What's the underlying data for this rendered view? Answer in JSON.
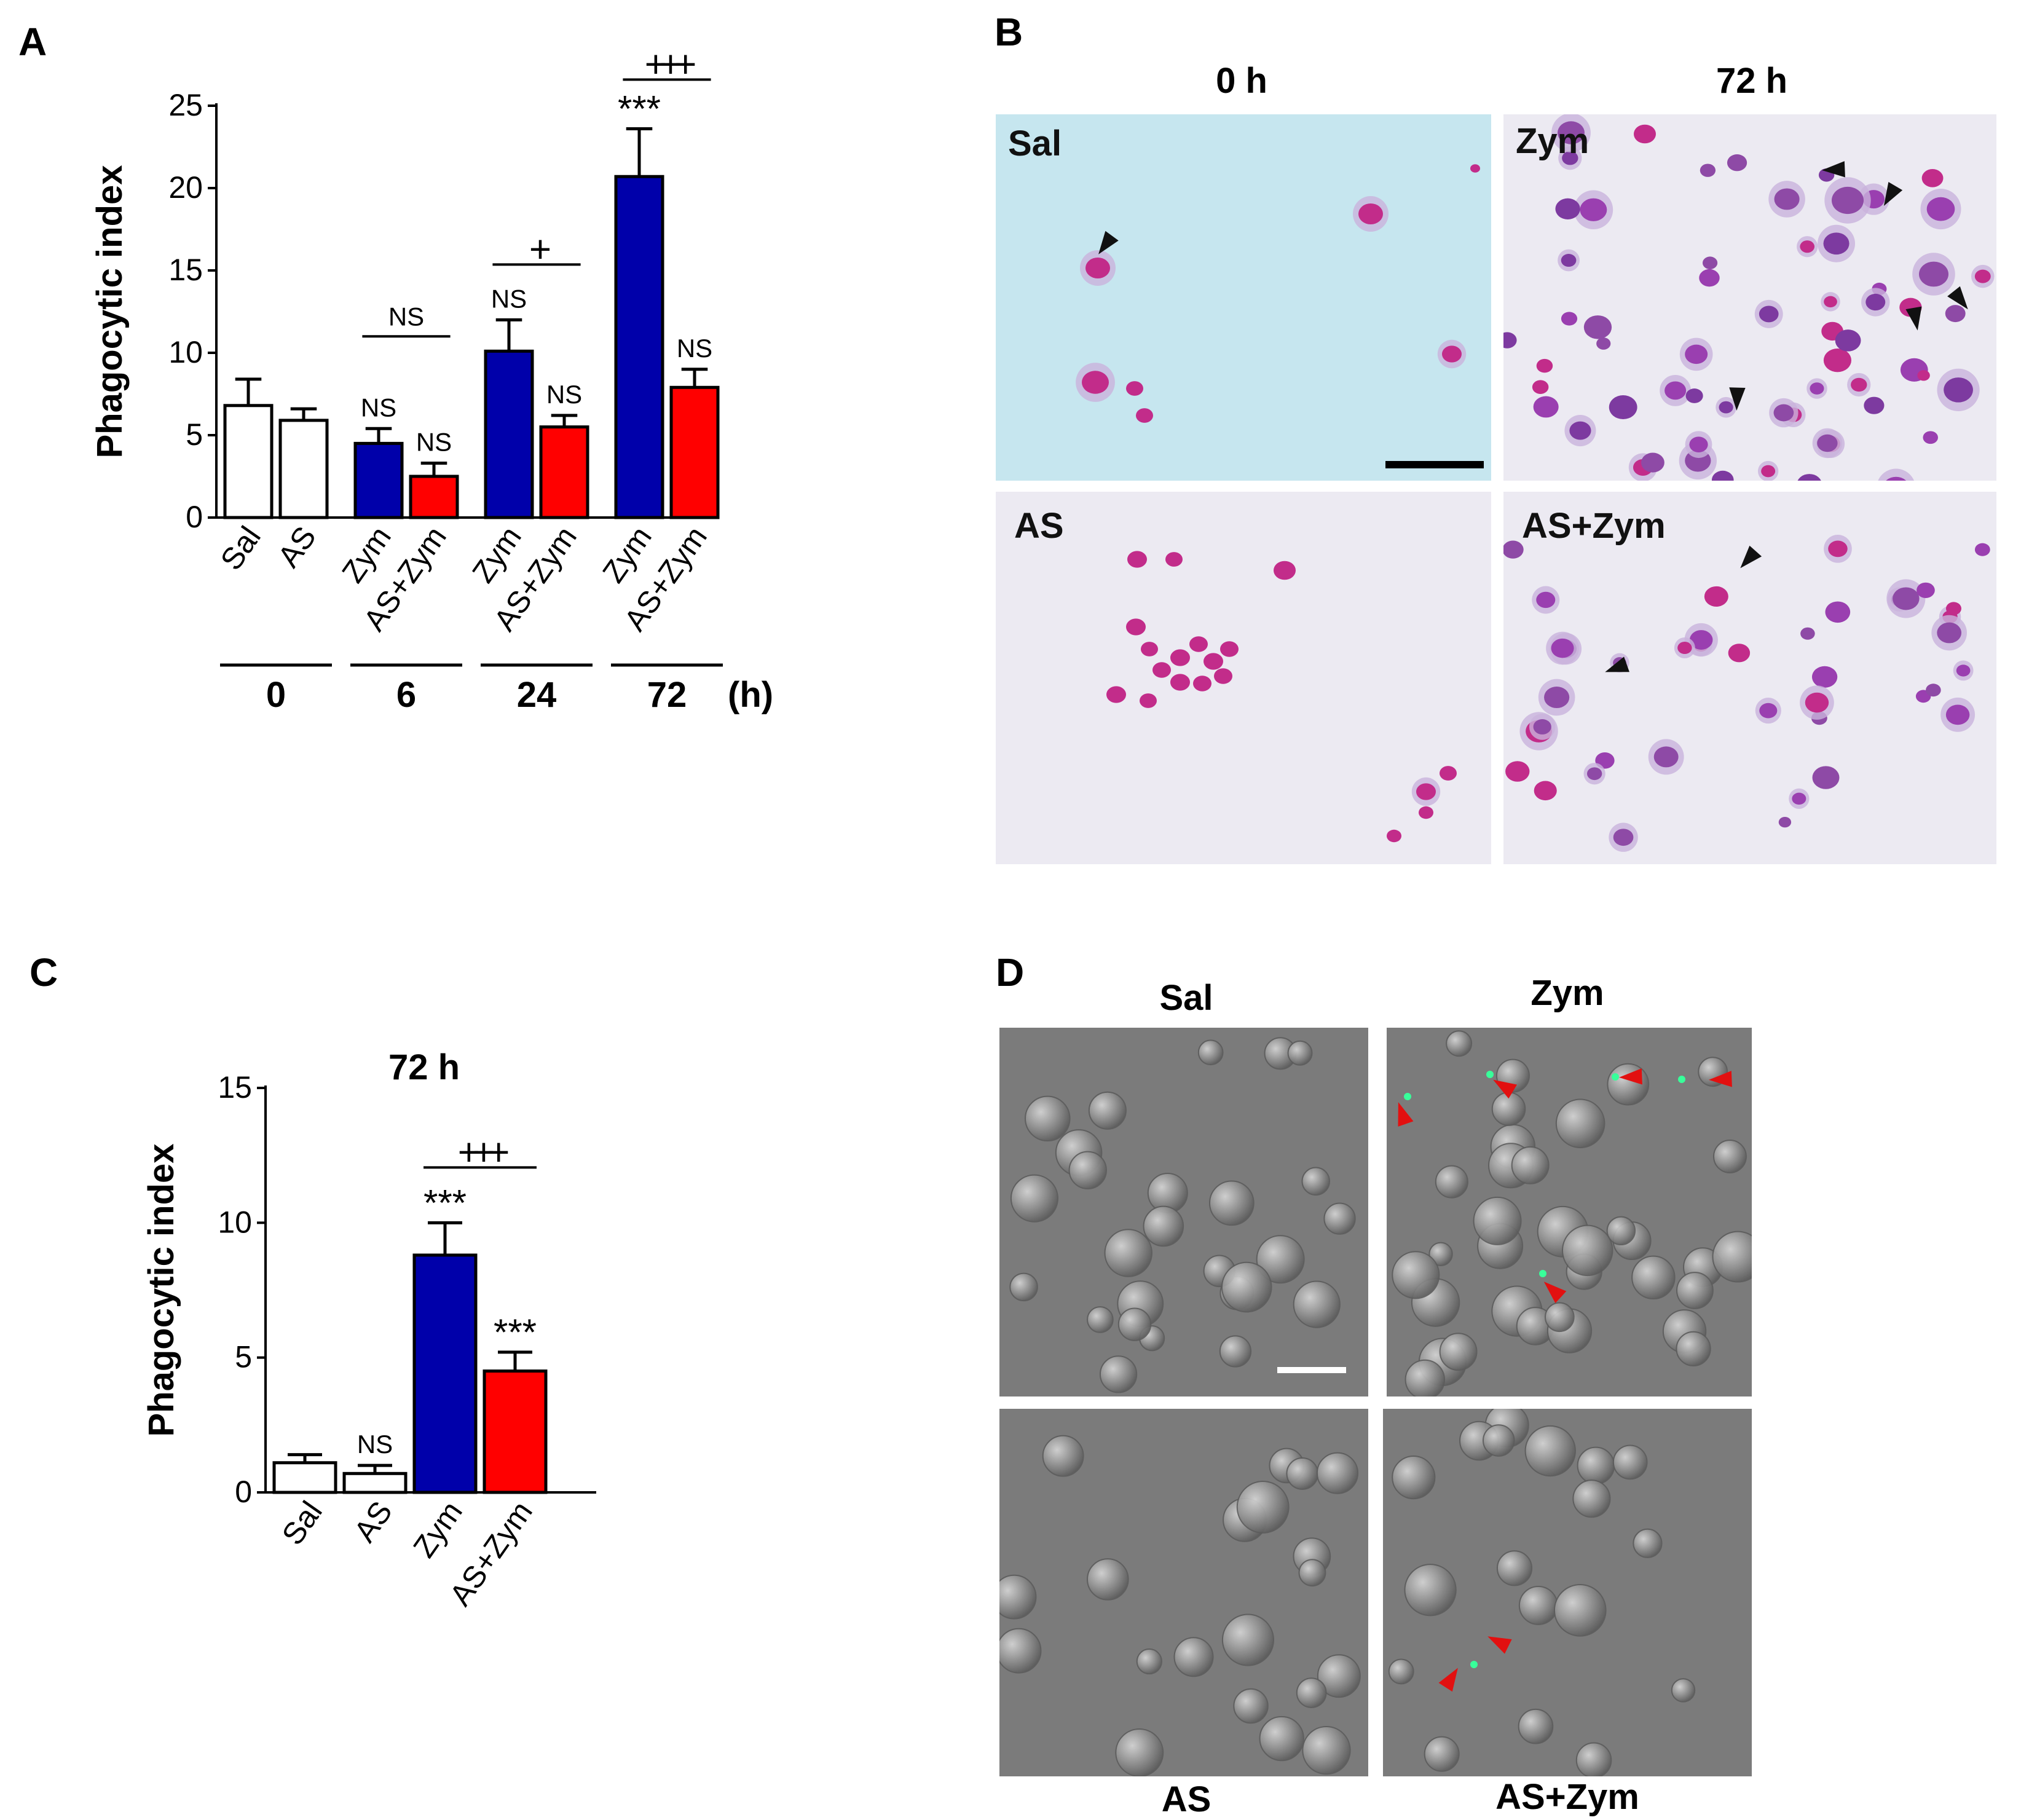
{
  "panels": {
    "A": "A",
    "B": "B",
    "C": "C",
    "D": "D"
  },
  "colors": {
    "sal": "#ffffff",
    "as": "#ffffff",
    "zym": "#0000aa",
    "as_zym": "#ff0000",
    "giemsa_bg_0h": "#c6e6ef",
    "giemsa_bg": "#eceaf2",
    "cell_pink": "#c22c8a",
    "cell_violet": "#8e4aa6",
    "dic_bg": "#7b7b7b",
    "arrow_red": "#e21010",
    "fluor_green": "#38ff9a"
  },
  "chart_data": [
    {
      "type": "bar",
      "panel": "A",
      "ylabel": "Phagocytic index",
      "xlabel": "(h)",
      "ylim": [
        0,
        25
      ],
      "yticks": [
        "0",
        "5",
        "10",
        "15",
        "20",
        "25"
      ],
      "categories": [
        "Sal",
        "AS",
        "Zym",
        "AS+Zym",
        "Zym",
        "AS+Zym",
        "Zym",
        "AS+Zym"
      ],
      "groups": [
        {
          "label": "0",
          "members": [
            0,
            1
          ]
        },
        {
          "label": "6",
          "members": [
            2,
            3
          ]
        },
        {
          "label": "24",
          "members": [
            4,
            5
          ]
        },
        {
          "label": "72",
          "members": [
            6,
            7
          ]
        }
      ],
      "values": [
        6.8,
        5.9,
        4.5,
        2.5,
        10.1,
        5.5,
        20.7,
        7.9
      ],
      "errors": [
        1.6,
        0.7,
        0.9,
        0.8,
        1.9,
        0.7,
        2.9,
        1.1
      ],
      "colors": [
        "sal",
        "as",
        "zym",
        "as_zym",
        "zym",
        "as_zym",
        "zym",
        "as_zym"
      ],
      "bar_annotations": [
        "",
        "",
        "NS",
        "NS",
        "NS",
        "NS",
        "***",
        "NS"
      ],
      "brackets": [
        {
          "from": 2,
          "to": 3,
          "label": "NS"
        },
        {
          "from": 4,
          "to": 5,
          "label": "+"
        },
        {
          "from": 6,
          "to": 7,
          "label": "+++"
        }
      ]
    },
    {
      "type": "bar",
      "panel": "C",
      "title": "72 h",
      "ylabel": "Phagocytic index",
      "ylim": [
        0,
        15
      ],
      "yticks": [
        "0",
        "5",
        "10",
        "15"
      ],
      "categories": [
        "Sal",
        "AS",
        "Zym",
        "AS+Zym"
      ],
      "values": [
        1.1,
        0.7,
        8.8,
        4.5
      ],
      "errors": [
        0.3,
        0.3,
        1.2,
        0.7
      ],
      "colors": [
        "sal",
        "as",
        "zym",
        "as_zym"
      ],
      "bar_annotations": [
        "",
        "NS",
        "***",
        "***"
      ],
      "brackets": [
        {
          "from": 2,
          "to": 3,
          "label": "+++"
        }
      ]
    }
  ],
  "panelB": {
    "col_headers": [
      "0 h",
      "72 h"
    ],
    "images": [
      {
        "label": "Sal",
        "arrows": 1,
        "scale_bar": true
      },
      {
        "label": "Zym",
        "arrows": 5
      },
      {
        "label": "AS",
        "arrows": 0
      },
      {
        "label": "AS+Zym",
        "arrows": 2
      }
    ]
  },
  "panelD": {
    "top_labels": [
      "Sal",
      "Zym"
    ],
    "bottom_labels": [
      "AS",
      "AS+Zym"
    ],
    "images": [
      {
        "name": "Sal",
        "arrows": 0,
        "scale_bar": true
      },
      {
        "name": "Zym",
        "arrows": 5
      },
      {
        "name": "AS",
        "arrows": 0
      },
      {
        "name": "AS+Zym",
        "arrows": 2
      }
    ]
  }
}
